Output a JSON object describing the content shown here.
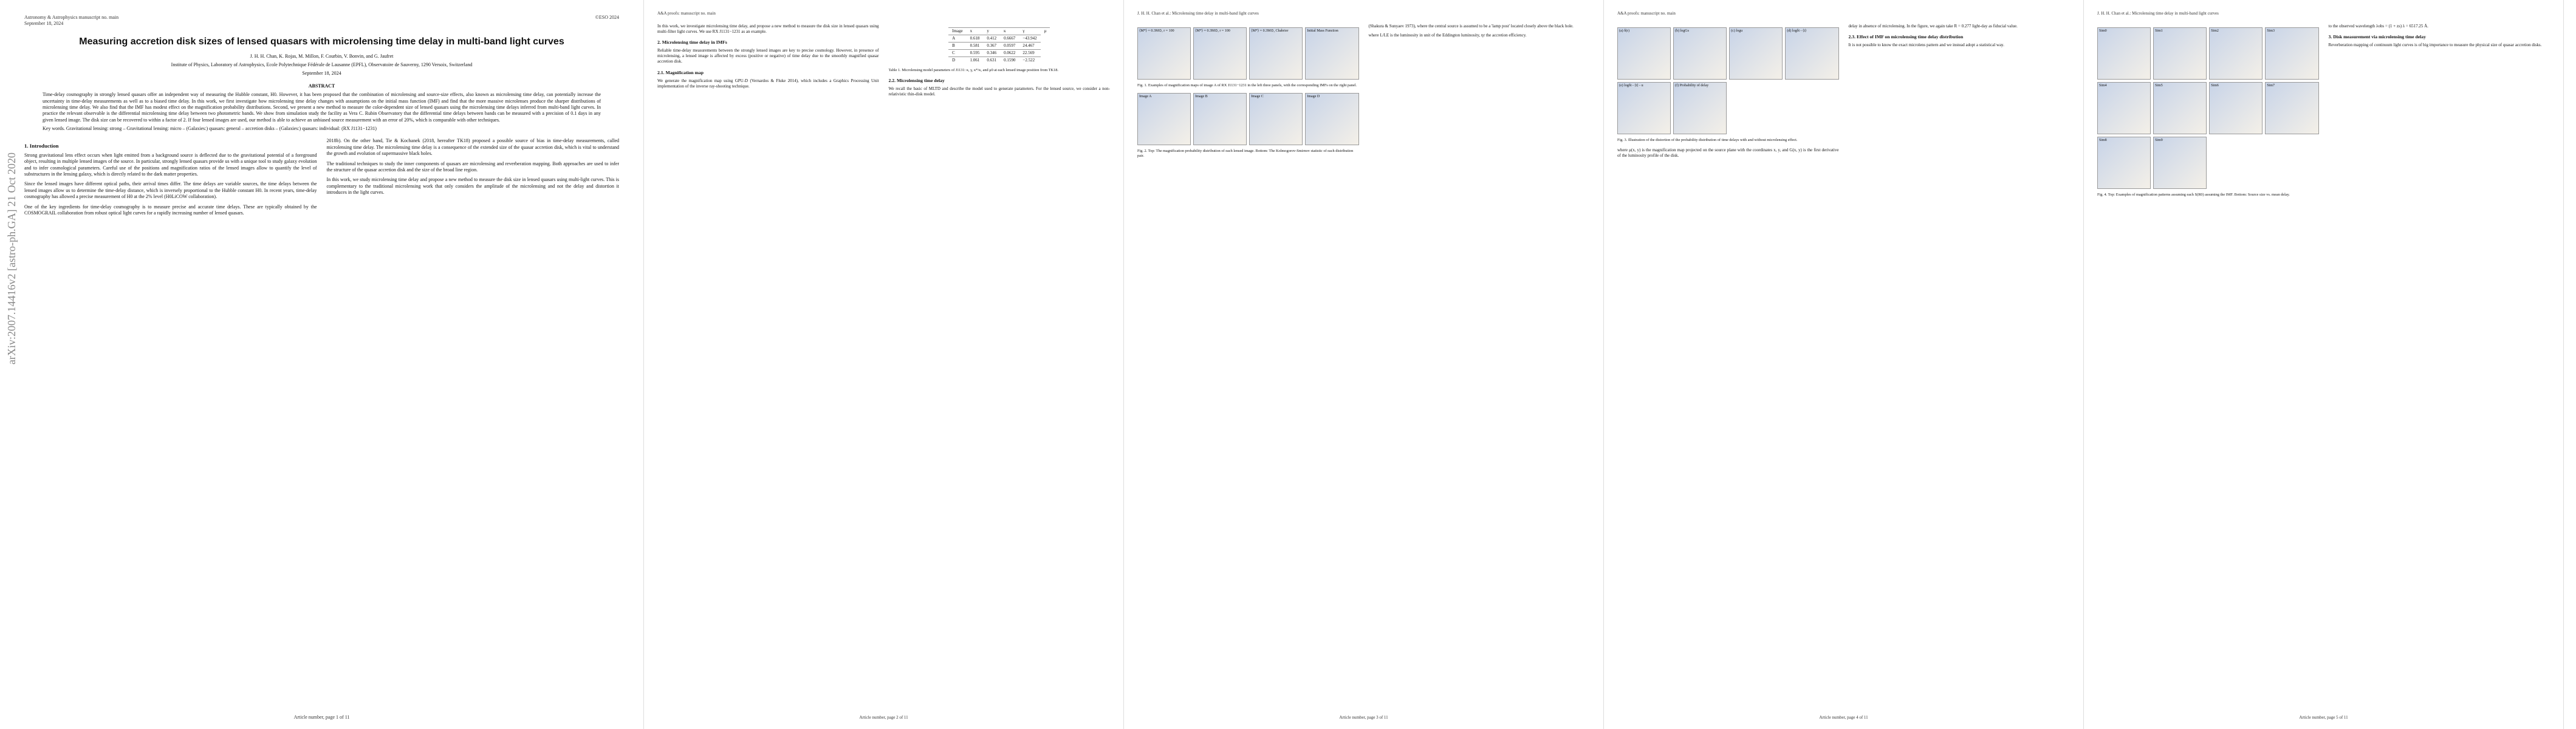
{
  "pages": [
    {
      "header_left": [
        "Astronomy & Astrophysics manuscript no. main",
        "September 18, 2024"
      ],
      "header_right": "©ESO 2024",
      "stamp": "arXiv:2007.14416v2 [astro-ph.GA] 21 Oct 2020",
      "title": "Measuring accretion disk sizes of lensed quasars with microlensing time delay in multi-band light curves",
      "authors": "J. H. H. Chan, K. Rojas, M. Millon, F. Courbin, V. Bonvin, and G. Jaufret",
      "affiliation": "Institute of Physics, Laboratory of Astrophysics, Ecole Polytechnique Fédérale de Lausanne (EPFL), Observatoire de Sauverny, 1290 Versoix, Switzerland",
      "date": "September 18, 2024",
      "abstract_heading": "ABSTRACT",
      "abstract": "Time-delay cosmography in strongly lensed quasars offer an independent way of measuring the Hubble constant, H0. However, it has been proposed that the combination of microlensing and source-size effects, also known as microlensing time delay, can potentially increase the uncertainty in time-delay measurements as well as to a biased time delay. In this work, we first investigate how microlensing time delay changes with assumptions on the initial mass function (IMF) and find that the more massive microlenses produce the sharper distributions of microlensing time delay. We also find that the IMF has modest effect on the magnification probability distributions. Second, we present a new method to measure the color-dependent size of lensed quasars using the microlensing time delays inferred from multi-band light curves. In practice the relevant observable is the differential microlensing time delay between two photometric bands. We show from simulation study the facility as Vera C. Rubin Observatory that the differential time delays between bands can be measured with a precision of 0.1 days in any given lensed image. The disk size can be recovered to within a factor of 2. If four lensed images are used, our method is able to achieve an unbiased source measurement with an error of 20%, which is comparable with other techniques.",
      "keywords": "Key words. Gravitational lensing: strong – Gravitational lensing: micro – (Galaxies:) quasars: general – accretion disks – (Galaxies:) quasars: individual: (RX J1131−1231)",
      "columns": [
        [
          {
            "heading": "1. Introduction"
          },
          {
            "text": "Strong gravitational lens effect occurs when light emitted from a background source is deflected due to the gravitational potential of a foreground object, resulting in multiple lensed images of the source. In particular, strongly lensed quasars provide us with a unique tool to study galaxy evolution and to infer cosmological parameters. Careful use of the positions and magnification ratios of the lensed images allow to quantify the level of substructures in the lensing galaxy, which is directly related to the dark matter properties."
          },
          {
            "text": "Since the lensed images have different optical paths, their arrival times differ. The time delays are variable sources, the time delays between the lensed images allow us to determine the time-delay distance, which is inversely proportional to the Hubble constant H0. In recent years, time-delay cosmography has allowed a precise measurement of H0 at the 2% level (H0LiCOW collaboration)."
          },
          {
            "text": "One of the key ingredients for time-delay cosmography is to measure precise and accurate time delays. These are typically obtained by the COSMOGRAIL collaboration from robust optical light curves for a rapidly increasing number of lensed quasars."
          }
        ],
        [
          {
            "text": "2018b). On the other hand, Tie & Kochanek (2018, hereafter TK18) proposed a possible source of bias in time-delay measurements, called microlensing time delay. The microlensing time delay is a consequence of the extended size of the quasar accretion disk, which is vital to understand the growth and evolution of supermassive black holes."
          },
          {
            "text": "The traditional techniques to study the inner components of quasars are microlensing and reverberation mapping. Both approaches are used to infer the structure of the quasar accretion disk and the size of the broad line region."
          },
          {
            "text": "In this work, we study microlensing time delay and propose a new method to measure the disk size in lensed quasars using multi-light curves. This is complementary to the traditional microlensing work that only considers the amplitude of the microlensing and not the delay and distortion it introduces in the light curves."
          }
        ]
      ],
      "footer": "Article number, page 1 of 11"
    },
    {
      "header_left": [
        "A&A proofs: manuscript no. main"
      ],
      "columns": [
        [
          {
            "text": "In this work, we investigate microlensing time delay, and propose a new method to measure the disk size in lensed quasars using multi-filter light curves. We use RX J1131−1231 as an example."
          },
          {
            "heading": "2. Microlensing time delay in IMFs"
          },
          {
            "text": "Reliable time-delay measurements between the strongly lensed images are key to precise cosmology. However, in presence of microlensing, a lensed image is affected by excess (positive or negative) of time delay due to the smoothly magnified quasar accretion disk."
          },
          {
            "heading": "2.1. Magnification map"
          },
          {
            "text": "We generate the magnification map using GPU-D (Vernardos & Fluke 2014), which includes a Graphics Processing Unit implementation of the inverse ray-shooting technique."
          }
        ],
        [
          {
            "table": [
              [
                "Image",
                "x",
                "y",
                "κ",
                "γ",
                "μ"
              ],
              [
                "A",
                "0.618",
                "0.412",
                "0.6667",
                "−43.942"
              ],
              [
                "B",
                "0.581",
                "0.367",
                "0.0597",
                "24.467"
              ],
              [
                "C",
                "0.595",
                "0.346",
                "0.0622",
                "22.569"
              ],
              [
                "D",
                "1.061",
                "0.631",
                "0.1590",
                "−2.522"
              ]
            ]
          },
          {
            "caption": "Table 1. Microlensing model parameters of J1131: κ, γ, κ*/κ, and μ0 at each lensed image position from TK18."
          },
          {
            "heading": "2.2. Microlensing time delay"
          },
          {
            "text": "We recall the basic of MLTD and describe the model used to generate parameters. For the lensed source, we consider a non-relativistic thin-disk model."
          }
        ]
      ],
      "footer": "Article number, page 2 of 11"
    },
    {
      "header_left": [
        "J. H. H. Chan et al.: Microlensing time delay in multi-band light curves"
      ],
      "columns": [
        [
          {
            "figure": [
              "⟨M*⟩ = 0.3M⊙, r = 100",
              "⟨M*⟩ = 0.3M⊙, r = 100",
              "⟨M*⟩ = 0.3M⊙, Chabrier",
              "Initial Mass Function"
            ]
          },
          {
            "caption": "Fig. 1. Examples of magnification maps of image A of RX J1131−1231 in the left three panels, with the corresponding IMFs on the right panel."
          },
          {
            "figure": [
              "Image A",
              "Image B",
              "Image C",
              "Image D"
            ]
          },
          {
            "caption": "Fig. 2. Top: The magnification probability distribution of each lensed image. Bottom: The Kolmogorov-Smirnov statistic of each distribution pair."
          }
        ],
        [
          {
            "text": "(Shakura & Sunyaev 1973), where the central source is assumed to be a 'lamp post' located closely above the black hole."
          },
          {
            "text": "where L/LE is the luminosity in unit of the Eddington luminosity, ηr the accretion efficiency."
          }
        ]
      ],
      "footer": "Article number, page 3 of 11"
    },
    {
      "header_left": [
        "A&A proofs: manuscript no. main"
      ],
      "columns": [
        [
          {
            "figure": [
              "(a) δ(r)",
              "(b) logGs",
              "(c) logu",
              "(d) logδt - ⟨t⟩",
              "(e) logδt - ⟨t⟩ - u",
              "(f) Probability of delay"
            ]
          },
          {
            "caption": "Fig. 3. Illustration of the distortion of the probability distribution of time delays with and without microlensing effect."
          },
          {
            "text": "where μ(x, y) is the magnification map projected on the source plane with the coordinates x, y, and G(x, y) is the first derivative of the luminosity profile of the disk."
          }
        ],
        [
          {
            "text": "delay in absence of microlensing. In the figure, we again take R = 0.277 light-day as fiducial value."
          },
          {
            "heading": "2.3. Effect of IMF on microlensing time delay distribution"
          },
          {
            "text": "It is not possible to know the exact microlens pattern and we instead adopt a statistical way."
          }
        ]
      ],
      "footer": "Article number, page 4 of 11"
    },
    {
      "header_left": [
        "J. H. H. Chan et al.: Microlensing time delay in multi-band light curves"
      ],
      "columns": [
        [
          {
            "figure": [
              "Sim0",
              "Sim1",
              "Sim2",
              "Sim3",
              "Sim4",
              "Sim5",
              "Sim6",
              "Sim7",
              "Sim8",
              "Sim9"
            ]
          },
          {
            "caption": "Fig. 4. Top: Examples of magnification patterns assuming each S(R0) assuming the IMF. Bottom: Source size vs. mean delay."
          }
        ],
        [
          {
            "text": "to the observed wavelength λobs = (1 + zs) λ = 6517.25 Å."
          },
          {
            "heading": "3. Disk measurement via microlensing time delay"
          },
          {
            "text": "Reverberation mapping of continuum light curves is of big importance to measure the physical size of quasar accretion disks."
          }
        ]
      ],
      "footer": "Article number, page 5 of 11"
    }
  ]
}
